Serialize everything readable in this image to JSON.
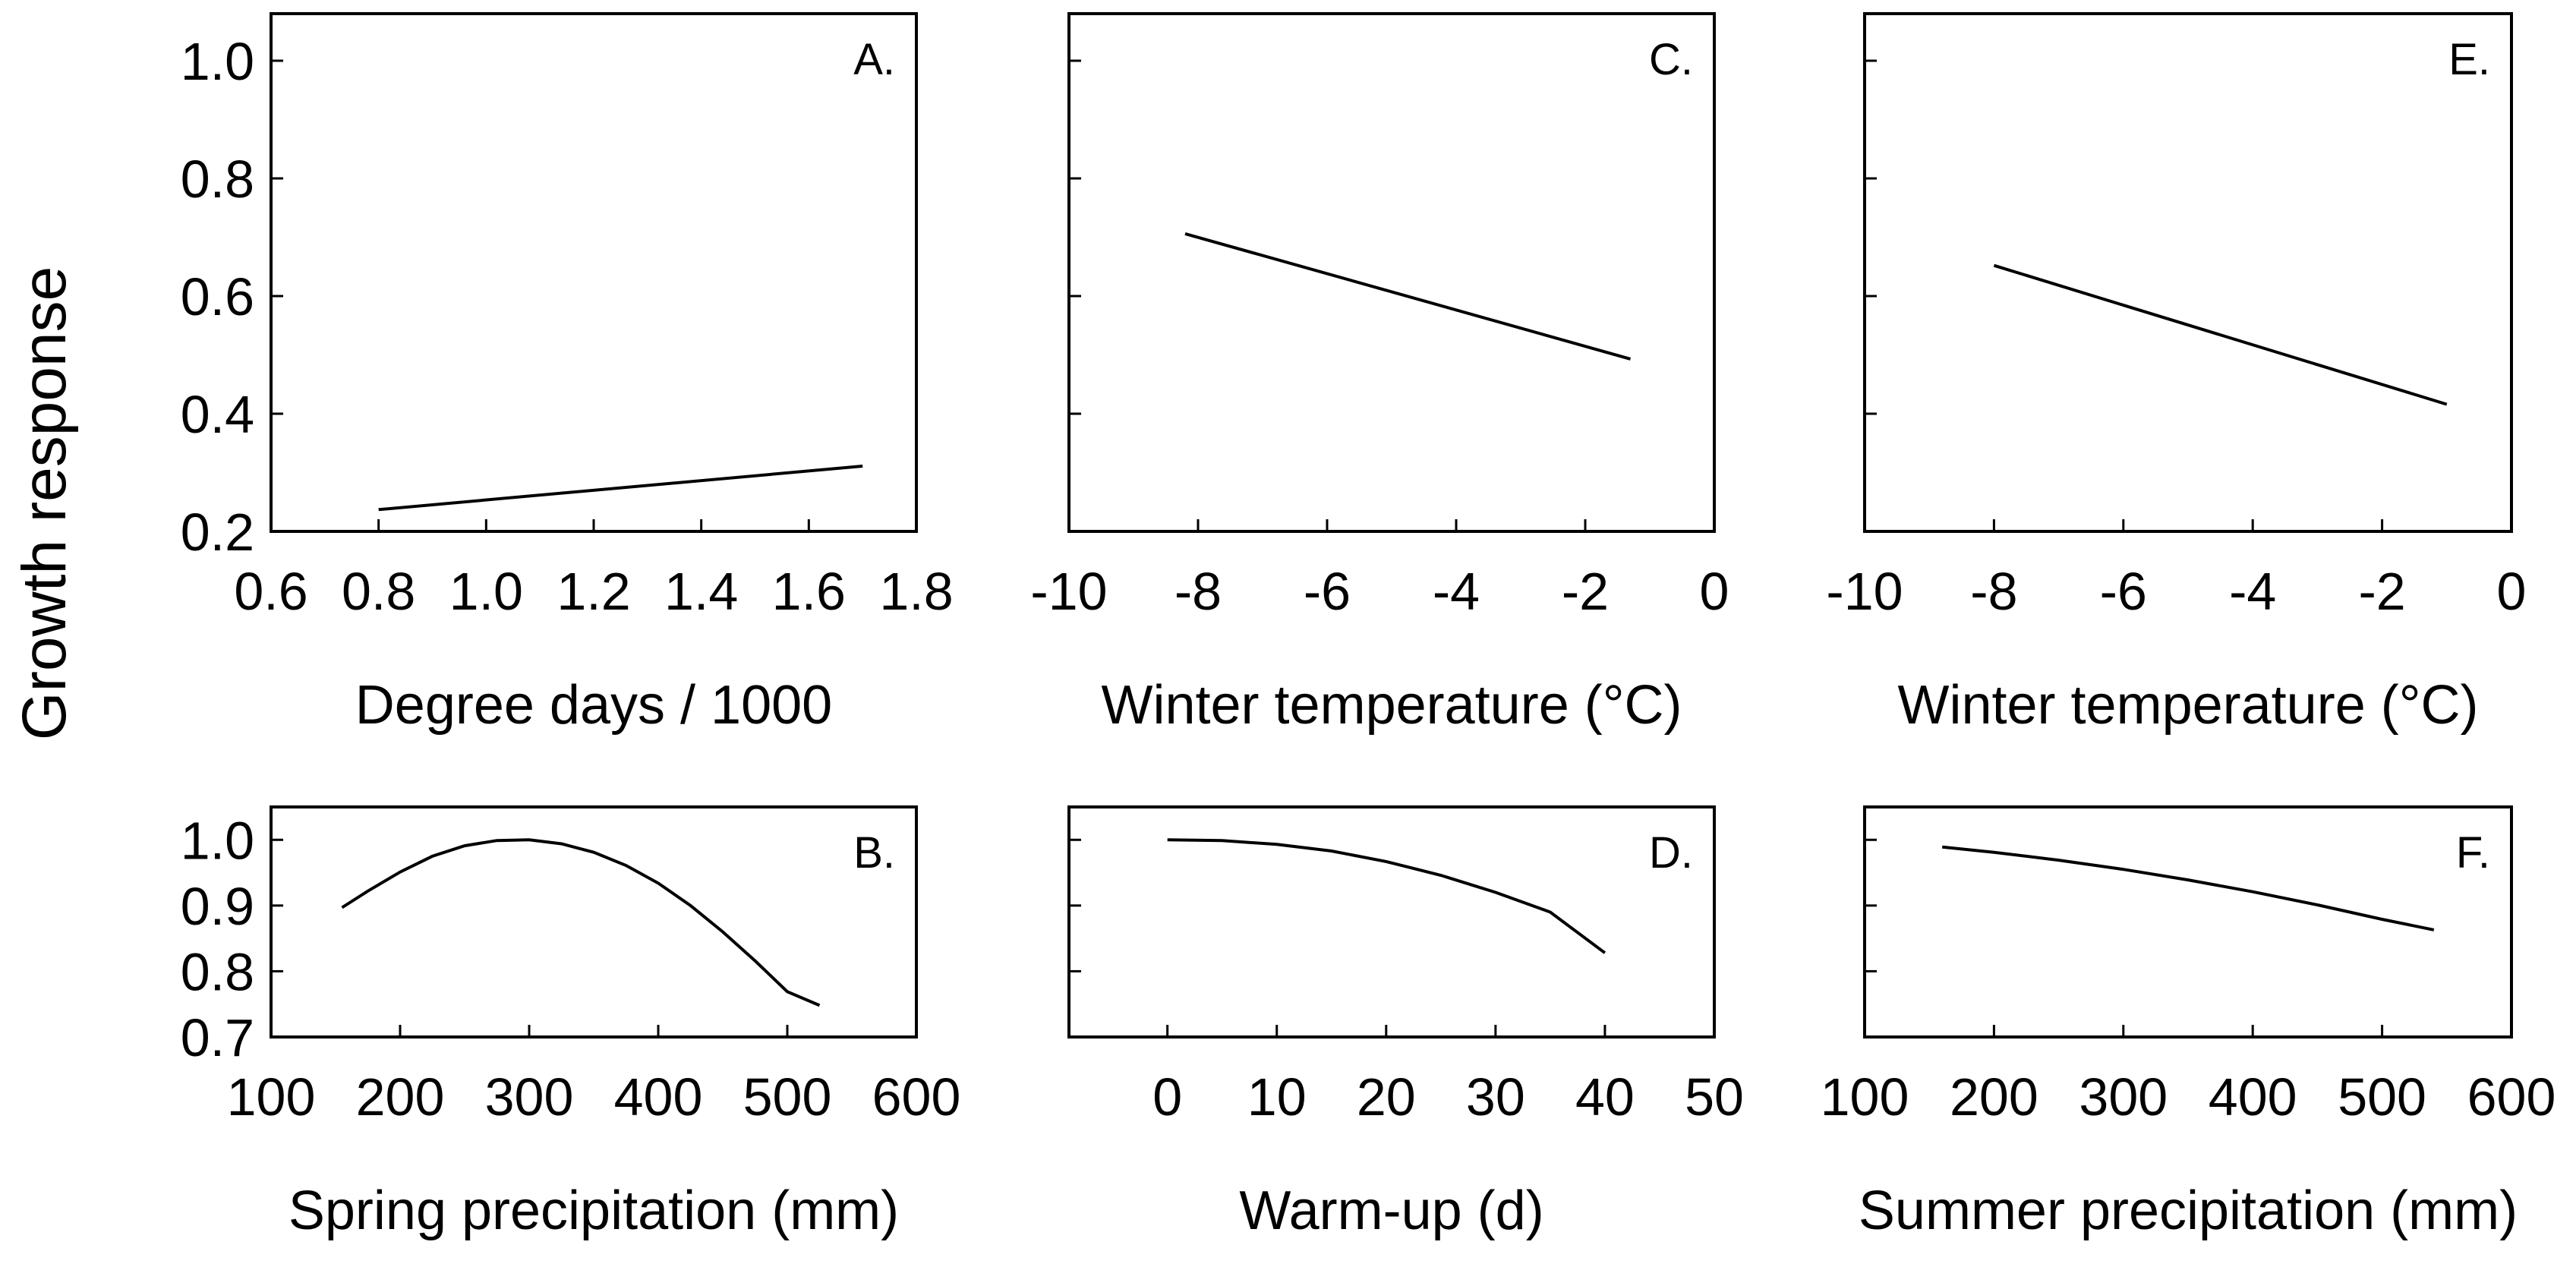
{
  "figure": {
    "ylabel": "Growth response"
  },
  "chart_data": [
    {
      "id": "A",
      "type": "line",
      "panel_label": "A.",
      "xlabel": "Degree days / 1000",
      "ylabel": "Growth response",
      "xlim": [
        0.6,
        1.8
      ],
      "ylim": [
        0.2,
        1.08
      ],
      "xticks": [
        0.6,
        0.8,
        1.0,
        1.2,
        1.4,
        1.6,
        1.8
      ],
      "xtick_labels": [
        "0.6",
        "0.8",
        "1.0",
        "1.2",
        "1.4",
        "1.6",
        "1.8"
      ],
      "yticks": [
        0.2,
        0.4,
        0.6,
        0.8,
        1.0
      ],
      "ytick_labels": [
        "0.2",
        "0.4",
        "0.6",
        "0.8",
        "1.0"
      ],
      "series": [
        {
          "x": [
            0.8,
            1.7
          ],
          "y": [
            0.237,
            0.311
          ]
        }
      ]
    },
    {
      "id": "B",
      "type": "line",
      "panel_label": "B.",
      "xlabel": "Spring precipitation (mm)",
      "ylabel": "Growth response",
      "xlim": [
        100,
        600
      ],
      "ylim": [
        0.7,
        1.05
      ],
      "xticks": [
        100,
        200,
        300,
        400,
        500,
        600
      ],
      "xtick_labels": [
        "100",
        "200",
        "300",
        "400",
        "500",
        "600"
      ],
      "yticks": [
        0.7,
        0.8,
        0.9,
        1.0
      ],
      "ytick_labels": [
        "0.7",
        "0.8",
        "0.9",
        "1.0"
      ],
      "series": [
        {
          "x": [
            155,
            175,
            200,
            225,
            250,
            275,
            300,
            325,
            350,
            375,
            400,
            425,
            450,
            475,
            500,
            525
          ],
          "y": [
            0.897,
            0.922,
            0.951,
            0.975,
            0.991,
            0.999,
            1.0,
            0.994,
            0.981,
            0.961,
            0.934,
            0.9,
            0.86,
            0.816,
            0.769,
            0.748
          ]
        }
      ]
    },
    {
      "id": "C",
      "type": "line",
      "panel_label": "C.",
      "xlabel": "Winter temperature (°C)",
      "ylabel": "Growth response",
      "xlim": [
        -10,
        0
      ],
      "ylim": [
        0.2,
        1.08
      ],
      "xticks": [
        -10,
        -8,
        -6,
        -4,
        -2,
        0
      ],
      "xtick_labels": [
        "-10",
        "-8",
        "-6",
        "-4",
        "-2",
        "0"
      ],
      "yticks": [
        0.2,
        0.4,
        0.6,
        0.8,
        1.0
      ],
      "ytick_labels": [
        "",
        "",
        "",
        "",
        ""
      ],
      "series": [
        {
          "x": [
            -8.2,
            -1.3
          ],
          "y": [
            0.706,
            0.493
          ]
        }
      ]
    },
    {
      "id": "D",
      "type": "line",
      "panel_label": "D.",
      "xlabel": "Warm-up (d)",
      "ylabel": "Growth response",
      "xlim": [
        -9,
        50
      ],
      "ylim": [
        0.7,
        1.05
      ],
      "xticks": [
        0,
        10,
        20,
        30,
        40,
        50
      ],
      "xtick_labels": [
        "0",
        "10",
        "20",
        "30",
        "40",
        "50"
      ],
      "yticks": [
        0.7,
        0.8,
        0.9,
        1.0
      ],
      "ytick_labels": [
        "",
        "",
        "",
        ""
      ],
      "series": [
        {
          "x": [
            0,
            5,
            10,
            15,
            20,
            25,
            30,
            35,
            40
          ],
          "y": [
            1.0,
            0.999,
            0.993,
            0.983,
            0.967,
            0.946,
            0.92,
            0.89,
            0.828
          ]
        }
      ]
    },
    {
      "id": "E",
      "type": "line",
      "panel_label": "E.",
      "xlabel": "Winter temperature (°C)",
      "ylabel": "Growth response",
      "xlim": [
        -10,
        0
      ],
      "ylim": [
        0.2,
        1.08
      ],
      "xticks": [
        -10,
        -8,
        -6,
        -4,
        -2,
        0
      ],
      "xtick_labels": [
        "-10",
        "-8",
        "-6",
        "-4",
        "-2",
        "0"
      ],
      "yticks": [
        0.2,
        0.4,
        0.6,
        0.8,
        1.0
      ],
      "ytick_labels": [
        "",
        "",
        "",
        "",
        ""
      ],
      "series": [
        {
          "x": [
            -8.0,
            -1.0
          ],
          "y": [
            0.652,
            0.416
          ]
        }
      ]
    },
    {
      "id": "F",
      "type": "line",
      "panel_label": "F.",
      "xlabel": "Summer precipitation (mm)",
      "ylabel": "Growth response",
      "xlim": [
        100,
        600
      ],
      "ylim": [
        0.7,
        1.05
      ],
      "xticks": [
        100,
        200,
        300,
        400,
        500,
        600
      ],
      "xtick_labels": [
        "100",
        "200",
        "300",
        "400",
        "500",
        "600"
      ],
      "yticks": [
        0.7,
        0.8,
        0.9,
        1.0
      ],
      "ytick_labels": [
        "",
        "",
        "",
        ""
      ],
      "series": [
        {
          "x": [
            160,
            200,
            250,
            300,
            350,
            400,
            450,
            500,
            540
          ],
          "y": [
            0.989,
            0.981,
            0.969,
            0.955,
            0.939,
            0.921,
            0.901,
            0.879,
            0.863
          ]
        }
      ]
    }
  ]
}
